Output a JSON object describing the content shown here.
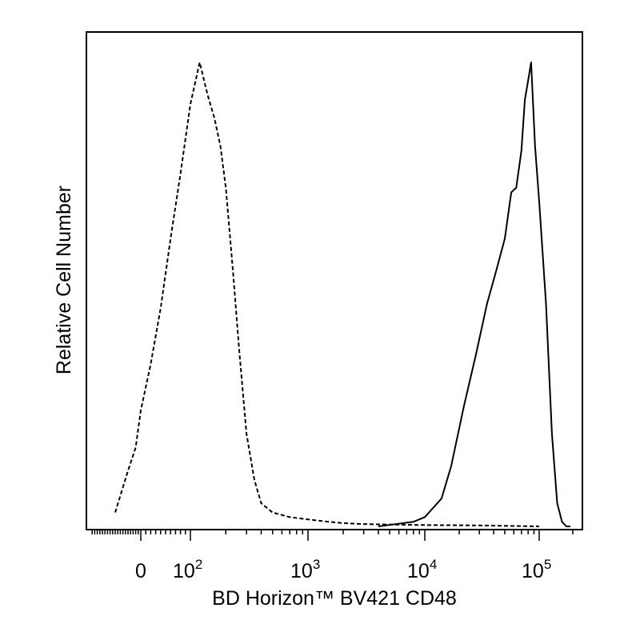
{
  "chart_data": {
    "type": "line",
    "title": "",
    "xlabel": "BD Horizon™ BV421 CD48",
    "ylabel": "Relative Cell Number",
    "x_scale": "biexponential (log with linear region around 0)",
    "grid": false,
    "legend": "none",
    "x_ticks": [
      {
        "value": 0,
        "label": "0"
      },
      {
        "value": 100,
        "base": "10",
        "exp": "2"
      },
      {
        "value": 1000,
        "base": "10",
        "exp": "3"
      },
      {
        "value": 10000,
        "base": "10",
        "exp": "4"
      },
      {
        "value": 100000,
        "base": "10",
        "exp": "5"
      }
    ],
    "series": [
      {
        "style": "dashed",
        "color": "#000000",
        "x": [
          -100,
          -50,
          -20,
          0,
          20,
          40,
          60,
          80,
          100,
          120,
          140,
          160,
          180,
          200,
          230,
          260,
          300,
          350,
          400,
          500,
          700,
          1000,
          1500,
          2000,
          3000,
          5000,
          10000,
          30000,
          100000
        ],
        "y": [
          0.03,
          0.12,
          0.17,
          0.25,
          0.35,
          0.47,
          0.62,
          0.76,
          0.91,
          1.0,
          0.93,
          0.88,
          0.82,
          0.73,
          0.55,
          0.38,
          0.2,
          0.1,
          0.05,
          0.03,
          0.02,
          0.015,
          0.01,
          0.007,
          0.005,
          0.004,
          0.003,
          0.002,
          0.0
        ]
      },
      {
        "style": "solid",
        "color": "#000000",
        "x": [
          4000,
          8000,
          10000,
          14000,
          17000,
          22000,
          28000,
          35000,
          42000,
          50000,
          57000,
          63000,
          70000,
          75000,
          80000,
          85000,
          92000,
          100000,
          115000,
          130000,
          145000,
          160000,
          175000,
          190000
        ],
        "y": [
          0.0,
          0.01,
          0.02,
          0.06,
          0.13,
          0.26,
          0.37,
          0.48,
          0.55,
          0.62,
          0.72,
          0.73,
          0.81,
          0.92,
          0.96,
          1.0,
          0.82,
          0.7,
          0.48,
          0.2,
          0.05,
          0.01,
          0.0,
          0.0
        ]
      }
    ]
  }
}
